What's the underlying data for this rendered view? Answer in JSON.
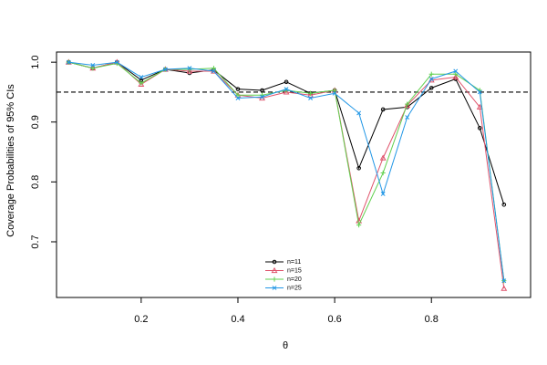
{
  "chart_data": {
    "type": "line",
    "x_label": "θ",
    "y_label": "Coverage Probabilities of 95% CIs",
    "x": [
      0.05,
      0.1,
      0.15,
      0.2,
      0.25,
      0.3,
      0.35,
      0.4,
      0.45,
      0.5,
      0.55,
      0.6,
      0.65,
      0.7,
      0.75,
      0.8,
      0.85,
      0.9,
      0.95
    ],
    "series": [
      {
        "name": "n=11",
        "color": "#000000",
        "marker": "circle",
        "values": [
          1.0,
          0.99,
          1.0,
          0.97,
          0.988,
          0.982,
          0.987,
          0.955,
          0.953,
          0.967,
          0.948,
          0.953,
          0.823,
          0.921,
          0.925,
          0.957,
          0.972,
          0.89,
          0.762
        ]
      },
      {
        "name": "n=15",
        "color": "#DF536B",
        "marker": "triangle",
        "values": [
          1.0,
          0.99,
          1.0,
          0.963,
          0.988,
          0.985,
          0.985,
          0.945,
          0.94,
          0.95,
          0.945,
          0.953,
          0.735,
          0.84,
          0.928,
          0.97,
          0.975,
          0.925,
          0.622
        ]
      },
      {
        "name": "n=20",
        "color": "#61D04F",
        "marker": "plus",
        "values": [
          1.0,
          0.99,
          0.998,
          0.965,
          0.988,
          0.988,
          0.99,
          0.945,
          0.945,
          0.953,
          0.948,
          0.953,
          0.728,
          0.815,
          0.93,
          0.98,
          0.98,
          0.953,
          0.635
        ]
      },
      {
        "name": "n=25",
        "color": "#2297E6",
        "marker": "x",
        "values": [
          1.0,
          0.995,
          1.0,
          0.975,
          0.988,
          0.99,
          0.985,
          0.94,
          0.942,
          0.955,
          0.94,
          0.948,
          0.915,
          0.78,
          0.908,
          0.972,
          0.985,
          0.95,
          0.635
        ]
      }
    ],
    "reference_line": 0.95,
    "xlim": [
      0.025,
      1.005
    ],
    "ylim": [
      0.607,
      1.017
    ],
    "xticks": [
      0.2,
      0.4,
      0.6,
      0.8
    ],
    "yticks": [
      0.7,
      0.8,
      0.9,
      {
        "value": 1,
        "label": "1.0"
      }
    ],
    "legend": "bottom-center"
  }
}
